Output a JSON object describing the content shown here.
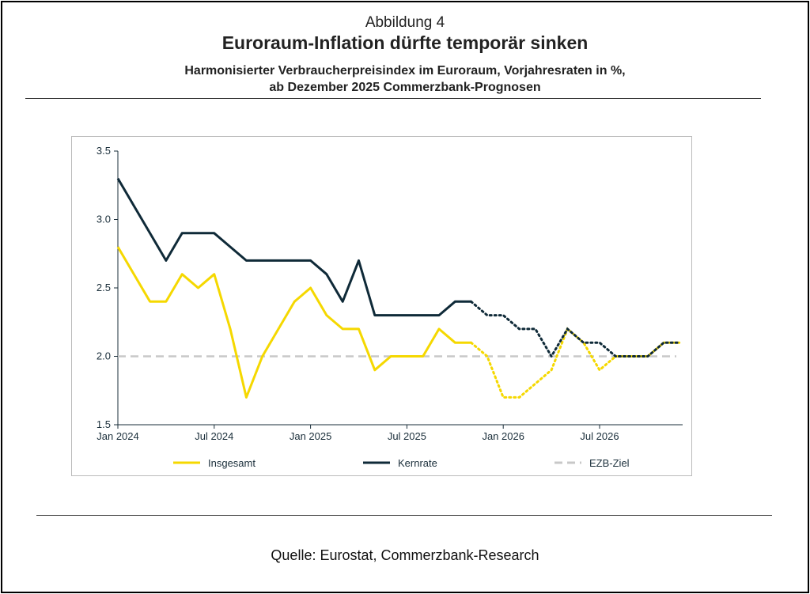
{
  "header": {
    "figure_label": "Abbildung 4",
    "title": "Euroraum-Inflation dürfte temporär sinken",
    "subtitle_line1": "Harmonisierter Verbraucherpreisindex im Euroraum, Vorjahresraten in %,",
    "subtitle_line2": "ab Dezember 2025 Commerzbank-Prognosen"
  },
  "footer": {
    "source": "Quelle: Eurostat, Commerzbank-Research"
  },
  "chart_data": {
    "type": "line",
    "title": "Euroraum-Inflation dürfte temporär sinken",
    "xlabel": "",
    "ylabel": "",
    "ylim": [
      1.5,
      3.5
    ],
    "yticks": [
      "1.5",
      "2.0",
      "2.5",
      "3.0",
      "3.5"
    ],
    "ytick_values": [
      1.5,
      2.0,
      2.5,
      3.0,
      3.5
    ],
    "xticks": [
      "Jan 2024",
      "Jul 2024",
      "Jan 2025",
      "Jul 2025",
      "Jan 2026",
      "Jul 2026"
    ],
    "xtick_month_index": [
      0,
      6,
      12,
      18,
      24,
      30
    ],
    "x_months": [
      "2024-01",
      "2024-02",
      "2024-03",
      "2024-04",
      "2024-05",
      "2024-06",
      "2024-07",
      "2024-08",
      "2024-09",
      "2024-10",
      "2024-11",
      "2024-12",
      "2025-01",
      "2025-02",
      "2025-03",
      "2025-04",
      "2025-05",
      "2025-06",
      "2025-07",
      "2025-08",
      "2025-09",
      "2025-10",
      "2025-11",
      "2025-12",
      "2026-01",
      "2026-02",
      "2026-03",
      "2026-04",
      "2026-05",
      "2026-06",
      "2026-07",
      "2026-08",
      "2026-09",
      "2026-10",
      "2026-11",
      "2026-12"
    ],
    "forecast_start_index": 23,
    "grid": false,
    "legend_position": "bottom",
    "series": [
      {
        "name": "Insgesamt",
        "color": "#f5d800",
        "style": "solid-then-dotted",
        "values": [
          2.8,
          2.6,
          2.4,
          2.4,
          2.6,
          2.5,
          2.6,
          2.2,
          1.7,
          2.0,
          2.2,
          2.4,
          2.5,
          2.3,
          2.2,
          2.2,
          1.9,
          2.0,
          2.0,
          2.0,
          2.2,
          2.1,
          2.1,
          2.0,
          1.7,
          1.7,
          1.8,
          1.9,
          2.2,
          2.1,
          1.9,
          2.0,
          2.0,
          2.0,
          2.1,
          2.1
        ]
      },
      {
        "name": "Kernrate",
        "color": "#0f2a38",
        "style": "solid-then-dotted",
        "values": [
          3.3,
          3.1,
          2.9,
          2.7,
          2.9,
          2.9,
          2.9,
          2.8,
          2.7,
          2.7,
          2.7,
          2.7,
          2.7,
          2.6,
          2.4,
          2.7,
          2.3,
          2.3,
          2.3,
          2.3,
          2.3,
          2.4,
          2.4,
          2.3,
          2.3,
          2.2,
          2.2,
          2.0,
          2.2,
          2.1,
          2.1,
          2.0,
          2.0,
          2.0,
          2.1,
          2.1
        ]
      },
      {
        "name": "EZB-Ziel",
        "color": "#c8c8c8",
        "style": "dashed",
        "values": [
          2.0,
          2.0,
          2.0,
          2.0,
          2.0,
          2.0,
          2.0,
          2.0,
          2.0,
          2.0,
          2.0,
          2.0,
          2.0,
          2.0,
          2.0,
          2.0,
          2.0,
          2.0,
          2.0,
          2.0,
          2.0,
          2.0,
          2.0,
          2.0,
          2.0,
          2.0,
          2.0,
          2.0,
          2.0,
          2.0,
          2.0,
          2.0,
          2.0,
          2.0,
          2.0,
          2.0
        ]
      }
    ],
    "legend": [
      "Insgesamt",
      "Kernrate",
      "EZB-Ziel"
    ]
  }
}
